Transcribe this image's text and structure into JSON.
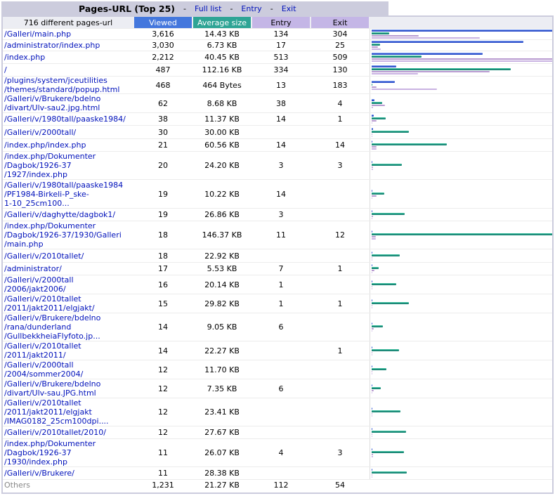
{
  "header": {
    "title": "Pages-URL (Top 25)",
    "links": [
      "Full list",
      "Entry",
      "Exit"
    ],
    "separator": "-"
  },
  "columns": {
    "label": "716 different pages-url",
    "viewed": "Viewed",
    "avg_size": "Average size",
    "entry": "Entry",
    "exit": "Exit"
  },
  "colors": {
    "viewed": "#4477dd",
    "avg_size": "#2ea495",
    "entry": "#c4b6e6",
    "exit": "#c4b6e6",
    "link": "#0011bb"
  },
  "max": {
    "viewed": 3616,
    "size_kb": 146.37,
    "entry": 513,
    "exit": 509
  },
  "rows": [
    {
      "url": "/Galleri/main.php",
      "viewed": "3,616",
      "size": "14.43 KB",
      "entry": "134",
      "exit": "304",
      "v": 3616,
      "s": 14.43,
      "e": 134,
      "x": 304
    },
    {
      "url": "/administrator/index.php",
      "viewed": "3,030",
      "size": "6.73 KB",
      "entry": "17",
      "exit": "25",
      "v": 3030,
      "s": 6.73,
      "e": 17,
      "x": 25
    },
    {
      "url": "/index.php",
      "viewed": "2,212",
      "size": "40.45 KB",
      "entry": "513",
      "exit": "509",
      "v": 2212,
      "s": 40.45,
      "e": 513,
      "x": 509
    },
    {
      "url": "/",
      "viewed": "487",
      "size": "112.16 KB",
      "entry": "334",
      "exit": "130",
      "v": 487,
      "s": 112.16,
      "e": 334,
      "x": 130
    },
    {
      "url": "/plugins/system/jceutilities\n/themes/standard/popup.html",
      "viewed": "468",
      "size": "464 Bytes",
      "entry": "13",
      "exit": "183",
      "v": 468,
      "s": 0.45,
      "e": 13,
      "x": 183
    },
    {
      "url": "/Galleri/v/Brukere/bdelno\n/divart/Ulv-sau2.jpg.html",
      "viewed": "62",
      "size": "8.68 KB",
      "entry": "38",
      "exit": "4",
      "v": 62,
      "s": 8.68,
      "e": 38,
      "x": 4
    },
    {
      "url": "/Galleri/v/1980tall/paaske1984/",
      "viewed": "38",
      "size": "11.37 KB",
      "entry": "14",
      "exit": "1",
      "v": 38,
      "s": 11.37,
      "e": 14,
      "x": 1
    },
    {
      "url": "/Galleri/v/2000tall/",
      "viewed": "30",
      "size": "30.00 KB",
      "entry": "",
      "exit": "",
      "v": 30,
      "s": 30.0,
      "e": 0,
      "x": 0
    },
    {
      "url": "/index.php/index.php",
      "viewed": "21",
      "size": "60.56 KB",
      "entry": "14",
      "exit": "14",
      "v": 21,
      "s": 60.56,
      "e": 14,
      "x": 14
    },
    {
      "url": "/index.php/Dokumenter\n/Dagbok/1926-37\n/1927/index.php",
      "viewed": "20",
      "size": "24.20 KB",
      "entry": "3",
      "exit": "3",
      "v": 20,
      "s": 24.2,
      "e": 3,
      "x": 3
    },
    {
      "url": "/Galleri/v/1980tall/paaske1984\n/PF1984-Birkeli-P_ske-\n1-10_25cm100...",
      "viewed": "19",
      "size": "10.22 KB",
      "entry": "14",
      "exit": "",
      "v": 19,
      "s": 10.22,
      "e": 14,
      "x": 0
    },
    {
      "url": "/Galleri/v/daghytte/dagbok1/",
      "viewed": "19",
      "size": "26.86 KB",
      "entry": "3",
      "exit": "",
      "v": 19,
      "s": 26.86,
      "e": 3,
      "x": 0
    },
    {
      "url": "/index.php/Dokumenter\n/Dagbok/1926-37/1930/Galleri\n/main.php",
      "viewed": "18",
      "size": "146.37 KB",
      "entry": "11",
      "exit": "12",
      "v": 18,
      "s": 146.37,
      "e": 11,
      "x": 12
    },
    {
      "url": "/Galleri/v/2010tallet/",
      "viewed": "18",
      "size": "22.92 KB",
      "entry": "",
      "exit": "",
      "v": 18,
      "s": 22.92,
      "e": 0,
      "x": 0
    },
    {
      "url": "/administrator/",
      "viewed": "17",
      "size": "5.53 KB",
      "entry": "7",
      "exit": "1",
      "v": 17,
      "s": 5.53,
      "e": 7,
      "x": 1
    },
    {
      "url": "/Galleri/v/2000tall\n/2006/jakt2006/",
      "viewed": "16",
      "size": "20.14 KB",
      "entry": "1",
      "exit": "",
      "v": 16,
      "s": 20.14,
      "e": 1,
      "x": 0
    },
    {
      "url": "/Galleri/v/2010tallet\n/2011/jakt2011/elgjakt/",
      "viewed": "15",
      "size": "29.82 KB",
      "entry": "1",
      "exit": "1",
      "v": 15,
      "s": 29.82,
      "e": 1,
      "x": 1
    },
    {
      "url": "/Galleri/v/Brukere/bdelno\n/rana/dunderland\n/GullbekkheiaFlyfoto.jp...",
      "viewed": "14",
      "size": "9.05 KB",
      "entry": "6",
      "exit": "",
      "v": 14,
      "s": 9.05,
      "e": 6,
      "x": 0
    },
    {
      "url": "/Galleri/v/2010tallet\n/2011/jakt2011/",
      "viewed": "14",
      "size": "22.27 KB",
      "entry": "",
      "exit": "1",
      "v": 14,
      "s": 22.27,
      "e": 0,
      "x": 1
    },
    {
      "url": "/Galleri/v/2000tall\n/2004/sommer2004/",
      "viewed": "12",
      "size": "11.70 KB",
      "entry": "",
      "exit": "",
      "v": 12,
      "s": 11.7,
      "e": 0,
      "x": 0
    },
    {
      "url": "/Galleri/v/Brukere/bdelno\n/divart/Ulv-sau.JPG.html",
      "viewed": "12",
      "size": "7.35 KB",
      "entry": "6",
      "exit": "",
      "v": 12,
      "s": 7.35,
      "e": 6,
      "x": 0
    },
    {
      "url": "/Galleri/v/2010tallet\n/2011/jakt2011/elgjakt\n/IMAG0182_25cm100dpi....",
      "viewed": "12",
      "size": "23.41 KB",
      "entry": "",
      "exit": "",
      "v": 12,
      "s": 23.41,
      "e": 0,
      "x": 0
    },
    {
      "url": "/Galleri/v/2010tallet/2010/",
      "viewed": "12",
      "size": "27.67 KB",
      "entry": "",
      "exit": "",
      "v": 12,
      "s": 27.67,
      "e": 0,
      "x": 0
    },
    {
      "url": "/index.php/Dokumenter\n/Dagbok/1926-37\n/1930/index.php",
      "viewed": "11",
      "size": "26.07 KB",
      "entry": "4",
      "exit": "3",
      "v": 11,
      "s": 26.07,
      "e": 4,
      "x": 3
    },
    {
      "url": "/Galleri/v/Brukere/",
      "viewed": "11",
      "size": "28.38 KB",
      "entry": "",
      "exit": "",
      "v": 11,
      "s": 28.38,
      "e": 0,
      "x": 0
    }
  ],
  "others": {
    "url": "Others",
    "viewed": "1,231",
    "size": "21.27 KB",
    "entry": "112",
    "exit": "54"
  }
}
